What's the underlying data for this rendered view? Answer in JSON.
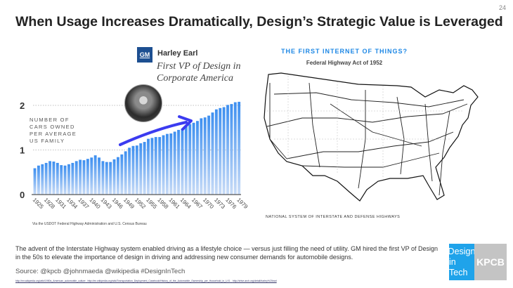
{
  "page_number": "24",
  "title": "When Usage Increases Dramatically, Design’s Strategic Value is Leveraged",
  "gm_logo": "GM",
  "person": {
    "name": "Harley Earl",
    "role": "First VP of Design in Corporate America"
  },
  "chart_note": "Via the USDOT Federal Highway Administration and U.S. Census Bureau",
  "chart_data": {
    "type": "bar",
    "ylabel": "NUMBER OF CARS OWNED PER AVERAGE US FAMILY",
    "ylim": [
      0,
      2.2
    ],
    "yticks": [
      "0",
      "1",
      "2"
    ],
    "xtick_labels": [
      "1925",
      "1928",
      "1931",
      "1934",
      "1937",
      "1940",
      "1943",
      "1946",
      "1949",
      "1952",
      "1955",
      "1958",
      "1961",
      "1964",
      "1967",
      "1970",
      "1973",
      "1976",
      "1979"
    ],
    "categories": [
      1925,
      1926,
      1927,
      1928,
      1929,
      1930,
      1931,
      1932,
      1933,
      1934,
      1935,
      1936,
      1937,
      1938,
      1939,
      1940,
      1941,
      1942,
      1943,
      1944,
      1945,
      1946,
      1947,
      1948,
      1949,
      1950,
      1951,
      1952,
      1953,
      1954,
      1955,
      1956,
      1957,
      1958,
      1959,
      1960,
      1961,
      1962,
      1963,
      1964,
      1965,
      1966,
      1967,
      1968,
      1969,
      1970,
      1971,
      1972,
      1973,
      1974,
      1975,
      1976,
      1977,
      1978,
      1979
    ],
    "values": [
      0.59,
      0.65,
      0.68,
      0.71,
      0.75,
      0.74,
      0.71,
      0.66,
      0.65,
      0.68,
      0.71,
      0.75,
      0.78,
      0.77,
      0.8,
      0.83,
      0.88,
      0.83,
      0.75,
      0.73,
      0.73,
      0.79,
      0.84,
      0.9,
      0.97,
      1.05,
      1.09,
      1.1,
      1.15,
      1.18,
      1.25,
      1.27,
      1.29,
      1.29,
      1.33,
      1.36,
      1.37,
      1.41,
      1.45,
      1.48,
      1.54,
      1.58,
      1.61,
      1.65,
      1.71,
      1.73,
      1.77,
      1.84,
      1.91,
      1.94,
      1.96,
      2.01,
      2.03,
      2.07,
      2.08
    ],
    "bar_color": "#3d8ff0",
    "arrow_color": "#3b3bf0",
    "grid": "dotted at 1 and 2"
  },
  "map": {
    "heading": "THE FIRST INTERNET OF THINGS?",
    "subheading": "Federal Highway Act of 1952",
    "caption": "NATIONAL SYSTEM OF INTERSTATE AND DEFENSE HIGHWAYS"
  },
  "body_text": "The advent of the Interstate Highway system enabled driving as a lifestyle choice — versus just filling the need of utility. GM hired the first VP of Design in the 50s to elevate the importance of design in driving and addressing new consumer demands for automobile designs.",
  "source": "Source: @kpcb @johnmaeda @wikipedia #DesignInTech",
  "links": [
    "http://en.wikipedia.org/wiki/1950s_American_automobile_culture",
    "http://en.wikipedia.org/wiki/Transportation_Deployment_Casebook/History_of_the_Automobile_Ownership_per_Household_in_U.S.",
    "http://drive.arch.org/detail/harley%20earl"
  ],
  "logo": {
    "line1": "Design",
    "line2": "in Tech",
    "brand": "KPCB"
  }
}
